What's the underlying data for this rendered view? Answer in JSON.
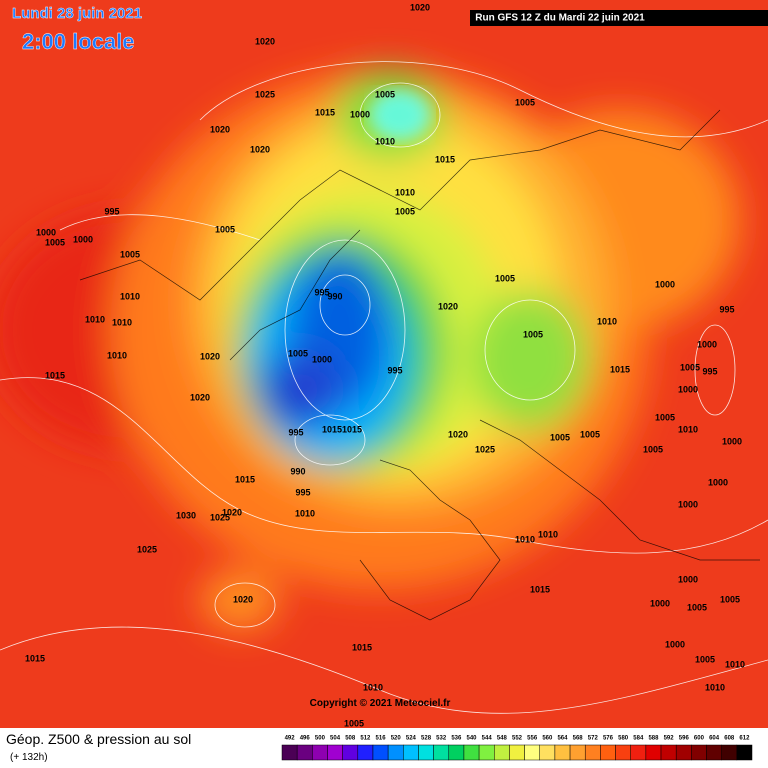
{
  "header": {
    "date": "Lundi 28 juin 2021",
    "time": "2:00 locale",
    "run": "Run GFS 12 Z du Mardi 22 juin 2021",
    "copyright": "Copyright © 2021 Meteociel.fr"
  },
  "footer": {
    "title": "Géop. Z500 & pression au sol",
    "lead": "(+ 132h)"
  },
  "isobar_labels": [
    1020,
    1020,
    1025,
    1020,
    1020,
    1005,
    1000,
    1015,
    1010,
    1015,
    1005,
    995,
    1000,
    1005,
    1000,
    1005,
    1005,
    1010,
    1005,
    1010,
    1010,
    1010,
    1010,
    995,
    990,
    1020,
    1005,
    1000,
    995,
    1005,
    1010,
    1020,
    1005,
    1000,
    995,
    1015,
    1020,
    1015,
    1000,
    1005,
    995,
    1000,
    1005,
    1010,
    1000,
    995,
    1015,
    1015,
    1020,
    1025,
    1005,
    1005,
    1005,
    990,
    1015,
    995,
    1000,
    1000,
    1010,
    1030,
    1025,
    1020,
    1010,
    1010,
    1025,
    1000,
    1015,
    1020,
    1000,
    1005,
    1005,
    1015,
    1015,
    1000,
    1005,
    1010,
    1010,
    1010,
    1005
  ],
  "legend": {
    "levels": [
      492,
      496,
      500,
      504,
      508,
      512,
      516,
      520,
      524,
      528,
      532,
      536,
      540,
      544,
      548,
      552,
      556,
      560,
      564,
      568,
      572,
      576,
      580,
      584,
      588,
      592,
      596,
      600,
      604,
      608,
      612
    ],
    "colors": [
      "#4b0055",
      "#6a0080",
      "#8e00b0",
      "#a000d0",
      "#6000e0",
      "#2020ff",
      "#0050ff",
      "#0090ff",
      "#00c0ff",
      "#00e0e0",
      "#00e0a0",
      "#00d060",
      "#40e040",
      "#80f040",
      "#c0f040",
      "#f0f040",
      "#ffff80",
      "#ffe060",
      "#ffc040",
      "#ffa030",
      "#ff8020",
      "#ff6010",
      "#f84010",
      "#f02010",
      "#e00000",
      "#c00000",
      "#a00000",
      "#800000",
      "#600000",
      "#400000",
      "#000000"
    ]
  }
}
